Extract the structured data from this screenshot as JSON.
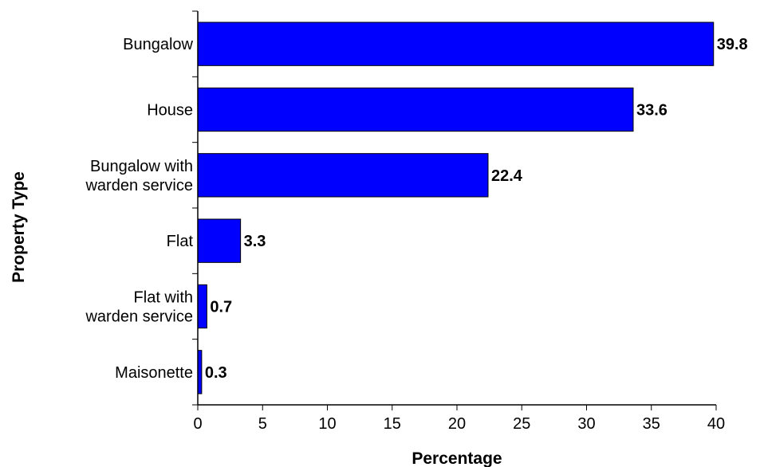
{
  "chart_data": {
    "type": "bar",
    "orientation": "horizontal",
    "categories": [
      [
        "Bungalow"
      ],
      [
        "House"
      ],
      [
        "Bungalow with",
        "warden service"
      ],
      [
        "Flat"
      ],
      [
        "Flat with",
        "warden service"
      ],
      [
        "Maisonette"
      ]
    ],
    "values": [
      39.8,
      33.6,
      22.4,
      3.3,
      0.7,
      0.3
    ],
    "value_labels": [
      "39.8",
      "33.6",
      "22.4",
      "3.3",
      "0.7",
      "0.3"
    ],
    "xlabel": "Percentage",
    "ylabel": "Property Type",
    "xlim": [
      0,
      40
    ],
    "xticks": [
      0,
      5,
      10,
      15,
      20,
      25,
      30,
      35,
      40
    ],
    "grid": false,
    "legend": "none",
    "bar_color": "#0000ff",
    "bar_edge_color": "#000000"
  }
}
